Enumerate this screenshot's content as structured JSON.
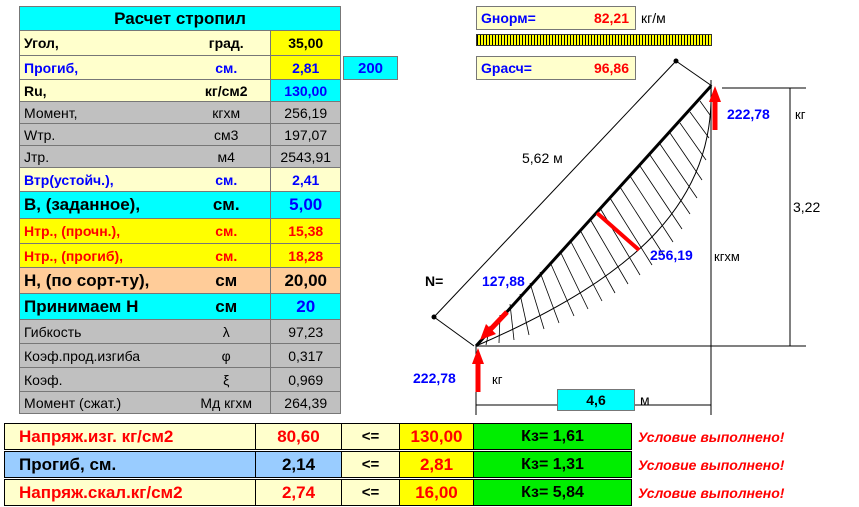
{
  "table": {
    "title": "Расчет стропил",
    "rows": [
      {
        "label": "Угол,",
        "unit": "град.",
        "value": "35,00"
      },
      {
        "label": "Прогиб,",
        "unit": "см.",
        "value": "2,81",
        "extra": "200"
      },
      {
        "label": "Ru,",
        "unit": "кг/см2",
        "value": "130,00"
      },
      {
        "label": "Момент,",
        "unit": "кгхм",
        "value": "256,19"
      },
      {
        "label": "Wтр.",
        "unit": "см3",
        "value": "197,07"
      },
      {
        "label": "Jтр.",
        "unit": "м4",
        "value": "2543,91"
      },
      {
        "label": "Втр(устойч.),",
        "unit": "см.",
        "value": "2,41"
      },
      {
        "label": "В, (заданное),",
        "unit": "см.",
        "value": "5,00"
      },
      {
        "label": "Нтр., (прочн.),",
        "unit": "см.",
        "value": "15,38"
      },
      {
        "label": "Нтр., (прогиб),",
        "unit": "см.",
        "value": "18,28"
      },
      {
        "label": "Н, (по сорт-ту),",
        "unit": "см",
        "value": "20,00"
      },
      {
        "label": "Принимаем Н",
        "unit": "см",
        "value": "20"
      },
      {
        "label": "Гибкость",
        "unit": "λ",
        "value": "97,23"
      },
      {
        "label": "Коэф.прод.изгиба",
        "unit": "φ",
        "value": "0,317"
      },
      {
        "label": "Коэф.",
        "unit": "ξ",
        "value": "0,969"
      },
      {
        "label": "Момент (сжат.)",
        "unit": "Мд  кгхм",
        "value": "264,39"
      }
    ]
  },
  "loads": {
    "gnorm_label": "Gнорм=",
    "gnorm_value": "82,21",
    "gnorm_unit": "кг/м",
    "gras_label": "Gрасч=",
    "gras_value": "96,86"
  },
  "diagram": {
    "length_label": "5,62  м",
    "height_label": "3,22",
    "top_force": "222,78",
    "top_force_unit": "кг",
    "moment_value": "256,19",
    "moment_unit": "кгхм",
    "n_label": "N=",
    "n_value": "127,88",
    "bottom_force": "222,78",
    "bottom_force_unit": "кг",
    "span_value": "4,6",
    "span_unit": "м"
  },
  "checks": [
    {
      "label": "Напряж.изг.   кг/см2",
      "value": "80,60",
      "op": "<=",
      "limit": "130,00",
      "k": "Кз= 1,61",
      "status": "Условие выполнено!",
      "color": "#ff0000",
      "bg": "#ffffcc"
    },
    {
      "label": "Прогиб,             см.",
      "value": "2,14",
      "op": "<=",
      "limit": "2,81",
      "k": "Кз= 1,31",
      "status": "Условие выполнено!",
      "color": "#000000",
      "bg": "#99ccff"
    },
    {
      "label": "Напряж.скал.кг/см2",
      "value": "2,74",
      "op": "<=",
      "limit": "16,00",
      "k": "Кз= 5,84",
      "status": "Условие выполнено!",
      "color": "#ff0000",
      "bg": "#ffffcc"
    }
  ],
  "colors": {
    "accent_blue": "#0000ff",
    "accent_red": "#ff0000",
    "ok_green": "#00ee00"
  }
}
